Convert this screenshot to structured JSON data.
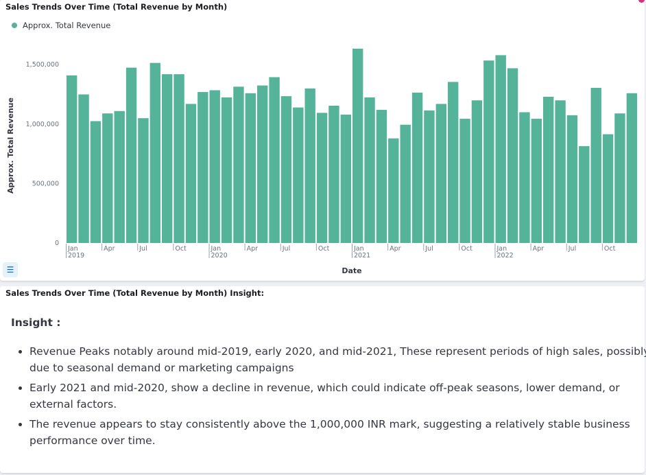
{
  "chart_panel": {
    "title": "Sales Trends Over Time (Total Revenue by Month)",
    "legend_label": "Approx. Total Revenue",
    "legend_toggle_icon": "list-icon"
  },
  "insight_panel": {
    "title": "Sales Trends Over Time (Total Revenue by Month) Insight:",
    "heading": "Insight :",
    "bullets": [
      "Revenue Peaks notably around mid-2019, early 2020, and mid-2021, These represent periods of high sales, possibly due to seasonal demand or marketing campaigns",
      "Early 2021 and mid-2020, show a decline in revenue, which could indicate off-peak seasons, lower demand, or external factors.",
      "The revenue appears to stay consistently above the 1,000,000 INR mark, suggesting a relatively stable business performance over time."
    ]
  },
  "colors": {
    "bar": "#54b399",
    "background": "#eef0f4",
    "panel": "#ffffff"
  },
  "chart_data": {
    "type": "bar",
    "xlabel": "Date",
    "ylabel": "Approx. Total Revenue",
    "ylim": [
      0,
      1640000
    ],
    "yticks": [
      0,
      500000,
      1000000,
      1500000
    ],
    "ytick_labels": [
      "0",
      "500,000",
      "1,000,000",
      "1,500,000"
    ],
    "grid": false,
    "legend_position": "top-left",
    "x_tick_labels": [
      {
        "index": 0,
        "month": "Jan",
        "year": "2019"
      },
      {
        "index": 3,
        "month": "Apr",
        "year": ""
      },
      {
        "index": 6,
        "month": "Jul",
        "year": ""
      },
      {
        "index": 9,
        "month": "Oct",
        "year": ""
      },
      {
        "index": 12,
        "month": "Jan",
        "year": "2020"
      },
      {
        "index": 15,
        "month": "Apr",
        "year": ""
      },
      {
        "index": 18,
        "month": "Jul",
        "year": ""
      },
      {
        "index": 21,
        "month": "Oct",
        "year": ""
      },
      {
        "index": 24,
        "month": "Jan",
        "year": "2021"
      },
      {
        "index": 27,
        "month": "Apr",
        "year": ""
      },
      {
        "index": 30,
        "month": "Jul",
        "year": ""
      },
      {
        "index": 33,
        "month": "Oct",
        "year": ""
      },
      {
        "index": 36,
        "month": "Jan",
        "year": "2022"
      },
      {
        "index": 39,
        "month": "Apr",
        "year": ""
      },
      {
        "index": 42,
        "month": "Jul",
        "year": ""
      },
      {
        "index": 45,
        "month": "Oct",
        "year": ""
      }
    ],
    "categories": [
      "2019-01",
      "2019-02",
      "2019-03",
      "2019-04",
      "2019-05",
      "2019-06",
      "2019-07",
      "2019-08",
      "2019-09",
      "2019-10",
      "2019-11",
      "2019-12",
      "2020-01",
      "2020-02",
      "2020-03",
      "2020-04",
      "2020-05",
      "2020-06",
      "2020-07",
      "2020-08",
      "2020-09",
      "2020-10",
      "2020-11",
      "2020-12",
      "2021-01",
      "2021-02",
      "2021-03",
      "2021-04",
      "2021-05",
      "2021-06",
      "2021-07",
      "2021-08",
      "2021-09",
      "2021-10",
      "2021-11",
      "2021-12",
      "2022-01",
      "2022-02",
      "2022-03",
      "2022-04",
      "2022-05",
      "2022-06",
      "2022-07",
      "2022-08",
      "2022-09",
      "2022-10",
      "2022-11",
      "2022-12"
    ],
    "series": [
      {
        "name": "Approx. Total Revenue",
        "values": [
          1410000,
          1250000,
          1025000,
          1090000,
          1110000,
          1475000,
          1050000,
          1515000,
          1420000,
          1420000,
          1170000,
          1270000,
          1285000,
          1225000,
          1315000,
          1260000,
          1325000,
          1395000,
          1235000,
          1140000,
          1300000,
          1095000,
          1155000,
          1080000,
          1635000,
          1225000,
          1120000,
          880000,
          995000,
          1265000,
          1115000,
          1170000,
          1355000,
          1045000,
          1200000,
          1535000,
          1580000,
          1470000,
          1100000,
          1045000,
          1230000,
          1200000,
          1075000,
          815000,
          1305000,
          915000,
          1090000,
          1260000
        ]
      }
    ]
  }
}
